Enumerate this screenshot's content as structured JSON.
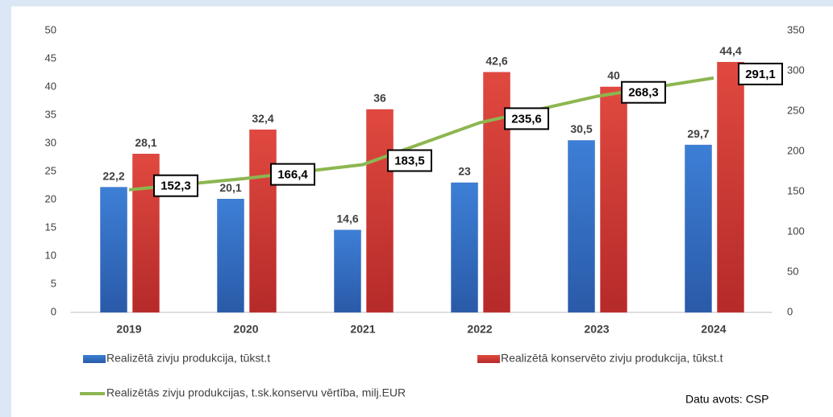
{
  "chart_data": {
    "type": "bar",
    "categories": [
      "2019",
      "2020",
      "2021",
      "2022",
      "2023",
      "2024"
    ],
    "series": [
      {
        "name": "Realizētā zivju produkcija, tūkst.t",
        "color": "#3a6fc4",
        "values": [
          22.2,
          20.1,
          14.6,
          23,
          30.5,
          29.7
        ],
        "value_labels": [
          "22,2",
          "20,1",
          "14,6",
          "23",
          "30,5",
          "29,7"
        ]
      },
      {
        "name": "Realizētā konservēto zivju produkcija, tūkst.t",
        "color": "#d83b3b",
        "values": [
          28.1,
          32.4,
          36,
          42.6,
          40,
          44.4
        ],
        "value_labels": [
          "28,1",
          "32,4",
          "36",
          "42,6",
          "40",
          "44,4"
        ]
      },
      {
        "name": "Realizētās zivju produkcijas, t.sk.konservu vērtība, milj.EUR",
        "color": "#8db650",
        "type": "line",
        "axis": "y2",
        "values": [
          152.3,
          166.4,
          183.5,
          235.6,
          268.3,
          291.1
        ],
        "value_labels": [
          "152,3",
          "166,4",
          "183,5",
          "235,6",
          "268,3",
          "291,1"
        ]
      }
    ],
    "ylim": [
      0,
      50
    ],
    "yticks": [
      0,
      5,
      10,
      15,
      20,
      25,
      30,
      35,
      40,
      45,
      50
    ],
    "y2lim": [
      0,
      350
    ],
    "y2ticks": [
      0,
      50,
      100,
      150,
      200,
      250,
      300,
      350
    ],
    "annotation": "Datu avots: CSP"
  }
}
